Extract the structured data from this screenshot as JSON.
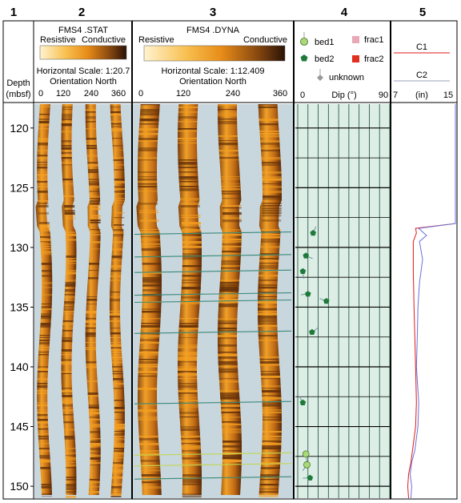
{
  "tracks": [
    {
      "number": "1",
      "depth_label": "Depth",
      "depth_unit": "(mbsf)"
    },
    {
      "number": "2",
      "title": "FMS4 .STAT",
      "scale_left": "Resistive",
      "scale_right": "Conductive",
      "horizontal_scale": "Horizontal Scale: 1:20.7",
      "orientation": "Orientation North",
      "azimuth_ticks": [
        "0",
        "120",
        "240",
        "360"
      ]
    },
    {
      "number": "3",
      "title": "FMS4 .DYNA",
      "scale_left": "Resistive",
      "scale_right": "Conductive",
      "horizontal_scale": "Horizontal Scale:  1:12.409",
      "orientation": "Orientation North",
      "azimuth_ticks": [
        "0",
        "120",
        "240",
        "360"
      ]
    },
    {
      "number": "4",
      "legend": [
        "bed1",
        "bed2",
        "unknown",
        "frac1",
        "frac2"
      ],
      "axis_label": "Dip (°)",
      "axis_min": "0",
      "axis_max": "90"
    },
    {
      "number": "5",
      "legend": [
        "C1",
        "C2"
      ],
      "axis_min": "7",
      "axis_label": "(in)",
      "axis_max": "15"
    }
  ],
  "colors": {
    "bed1": "#a8d878",
    "bed2": "#1f7a3a",
    "unknown": "#999999",
    "frac1": "#e8a8b8",
    "frac2": "#e03020",
    "c1": "#e01818",
    "c2": "#6a70d8",
    "image_dark": "#5a2a08",
    "image_light": "#f5a020",
    "grid_bg": "#dceee6",
    "grid_line": "#1e4a3c"
  },
  "chart_data": {
    "type": "well-log",
    "depth_range": [
      118,
      151
    ],
    "depth_ticks": [
      "120",
      "125",
      "130",
      "135",
      "140",
      "145",
      "150"
    ],
    "dip_range": [
      0,
      90
    ],
    "caliper_range": [
      7,
      15
    ],
    "bedding_dips": [
      {
        "depth": 128.8,
        "dip": 15,
        "type": "bed2"
      },
      {
        "depth": 130.7,
        "dip": 8,
        "type": "bed2"
      },
      {
        "depth": 132.0,
        "dip": 5,
        "type": "bed2"
      },
      {
        "depth": 133.9,
        "dip": 10,
        "type": "bed2"
      },
      {
        "depth": 134.5,
        "dip": 28,
        "type": "bed2"
      },
      {
        "depth": 137.1,
        "dip": 14,
        "type": "bed2"
      },
      {
        "depth": 143.0,
        "dip": 5,
        "type": "bed2"
      },
      {
        "depth": 147.3,
        "dip": 8,
        "type": "bed1"
      },
      {
        "depth": 148.2,
        "dip": 9,
        "type": "bed1"
      },
      {
        "depth": 149.3,
        "dip": 12,
        "type": "bed2"
      }
    ],
    "series": [
      {
        "name": "C1",
        "points": [
          [
            118,
            15
          ],
          [
            128,
            15
          ],
          [
            128.4,
            9.9
          ],
          [
            128.8,
            10.0
          ],
          [
            129.5,
            9.6
          ],
          [
            132,
            9.6
          ],
          [
            135,
            9.7
          ],
          [
            140,
            9.9
          ],
          [
            143,
            10.0
          ],
          [
            145,
            9.9
          ],
          [
            147,
            9.5
          ],
          [
            148,
            9.3
          ],
          [
            149,
            9.0
          ],
          [
            150,
            8.9
          ],
          [
            151,
            9.0
          ]
        ]
      },
      {
        "name": "C2",
        "points": [
          [
            118,
            15
          ],
          [
            128,
            15
          ],
          [
            128.4,
            10.3
          ],
          [
            129.0,
            11.3
          ],
          [
            129.5,
            10.4
          ],
          [
            131,
            10.8
          ],
          [
            133,
            10.4
          ],
          [
            135,
            10.2
          ],
          [
            138,
            10.1
          ],
          [
            140,
            10.0
          ],
          [
            143,
            10.3
          ],
          [
            145,
            10.2
          ],
          [
            147,
            9.8
          ],
          [
            148,
            9.4
          ],
          [
            149,
            9.2
          ],
          [
            150,
            9.4
          ],
          [
            151,
            9.3
          ]
        ]
      }
    ]
  }
}
